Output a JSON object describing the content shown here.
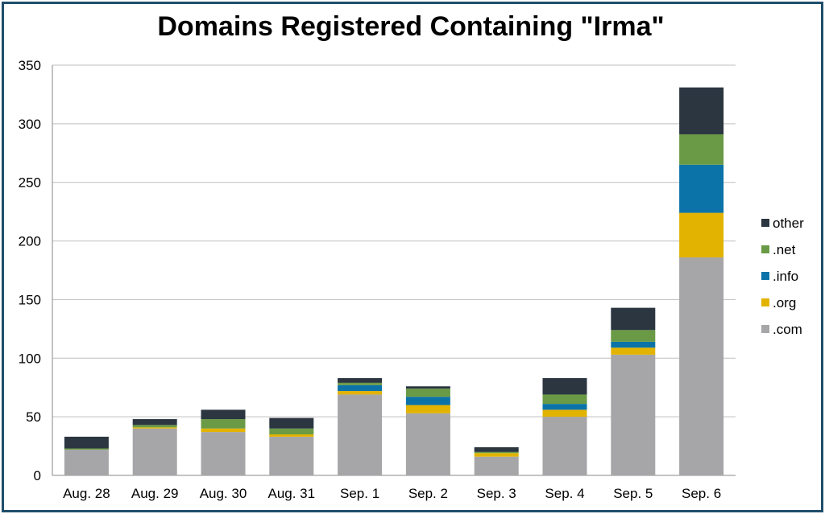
{
  "chart_data": {
    "type": "bar",
    "stacked": true,
    "title": "Domains Registered Containing \"Irma\"",
    "xlabel": "",
    "ylabel": "",
    "ylim": [
      0,
      350
    ],
    "yticks": [
      "0",
      "50",
      "100",
      "150",
      "200",
      "250",
      "300",
      "350"
    ],
    "grid": true,
    "legend_position": "right",
    "categories": [
      "Aug. 28",
      "Aug. 29",
      "Aug. 30",
      "Aug. 31",
      "Sep. 1",
      "Sep. 2",
      "Sep. 3",
      "Sep. 4",
      "Sep. 5",
      "Sep. 6"
    ],
    "series": [
      {
        "name": ".com",
        "color": "#a6a6a8",
        "values": [
          22,
          40,
          37,
          33,
          69,
          53,
          16,
          50,
          103,
          186
        ]
      },
      {
        "name": ".org",
        "color": "#e2b300",
        "values": [
          0,
          1,
          3,
          2,
          3,
          7,
          3,
          6,
          6,
          38
        ]
      },
      {
        "name": ".info",
        "color": "#0b73a8",
        "values": [
          0,
          0,
          0,
          0,
          5,
          7,
          0,
          5,
          5,
          41
        ]
      },
      {
        "name": ".net",
        "color": "#6a9a45",
        "values": [
          1,
          2,
          8,
          5,
          2,
          7,
          1,
          8,
          10,
          26
        ]
      },
      {
        "name": "other",
        "color": "#2b3641",
        "values": [
          10,
          5,
          8,
          9,
          4,
          2,
          4,
          14,
          19,
          40
        ]
      }
    ]
  }
}
